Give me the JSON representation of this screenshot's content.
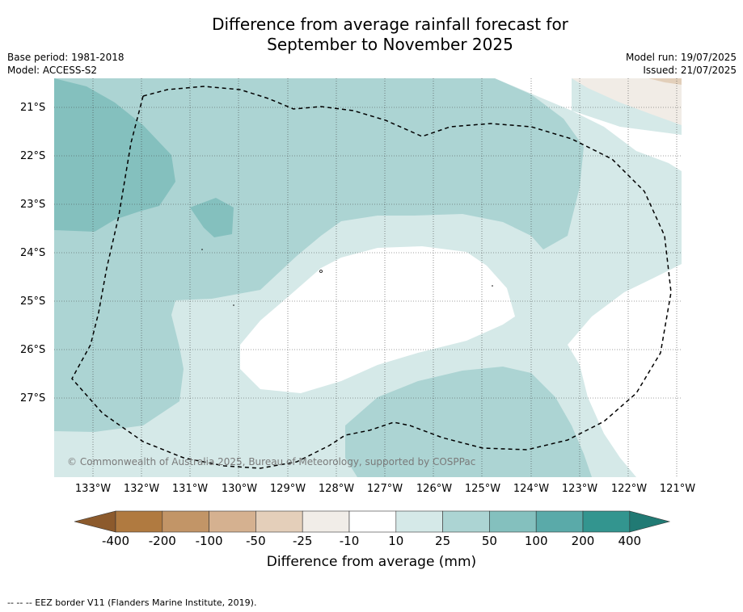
{
  "title": {
    "line1": "Difference from average rainfall forecast for",
    "line2": "September to November 2025"
  },
  "meta": {
    "base_period": "Base period: 1981-2018",
    "model": "Model: ACCESS-S2",
    "model_run": "Model run: 19/07/2025",
    "issued": "Issued: 21/07/2025"
  },
  "map": {
    "lat_labels": [
      "21°S",
      "22°S",
      "23°S",
      "24°S",
      "25°S",
      "26°S",
      "27°S"
    ],
    "lon_labels": [
      "133°W",
      "132°W",
      "131°W",
      "130°W",
      "129°W",
      "128°W",
      "127°W",
      "126°W",
      "125°W",
      "124°W",
      "123°W",
      "122°W",
      "121°W"
    ],
    "copyright": "© Commonwealth of Australia 2025, Bureau of Meteorology, supported by COSPPac",
    "colors": {
      "band_10_25": "#d5e9e8",
      "band_25_50": "#acd4d3",
      "band_50_100": "#84c0be",
      "band_n25_n10": "#f1ece6",
      "band_n50_n25": "#e2cfba"
    }
  },
  "colorbar": {
    "ticks": [
      "-400",
      "-200",
      "-100",
      "-50",
      "-25",
      "-10",
      "10",
      "25",
      "50",
      "100",
      "200",
      "400"
    ],
    "colors": [
      "#8c5a2c",
      "#b07a40",
      "#c29567",
      "#d5b190",
      "#e4cfba",
      "#f1ede8",
      "#ffffff",
      "#d5e9e8",
      "#acd4d3",
      "#84c0be",
      "#5aaaa9",
      "#33958f",
      "#217a74"
    ],
    "label": "Difference from average (mm)"
  },
  "footnote": "--  --  -- EEZ border V11 (Flanders Marine Institute, 2019)."
}
